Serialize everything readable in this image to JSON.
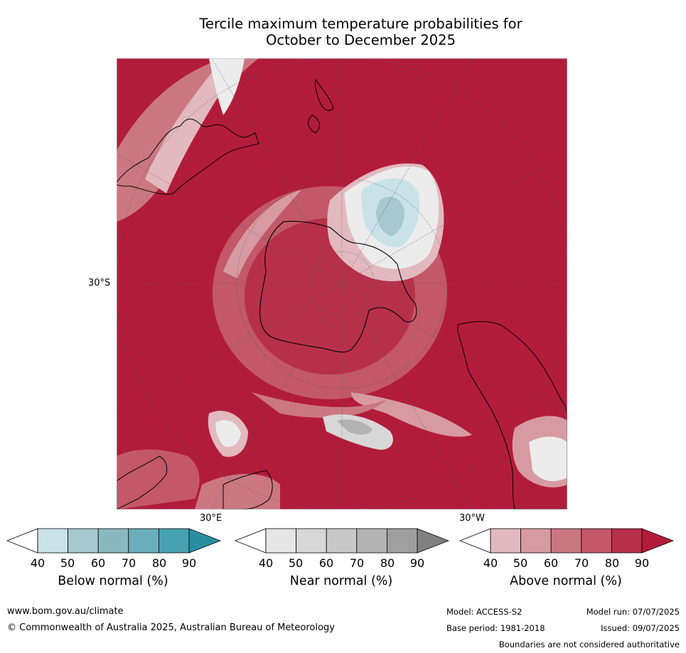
{
  "title_line1": "Tercile maximum temperature probabilities for",
  "title_line2": "October to December 2025",
  "map_labels": {
    "lat": "30°S",
    "lon_east": "30°E",
    "lon_west": "30°W"
  },
  "colorbars": [
    {
      "title": "Below normal (%)",
      "ticks": [
        "40",
        "50",
        "60",
        "70",
        "80",
        "90"
      ],
      "colors": [
        "#ffffff",
        "#c9e2e8",
        "#a6c8ce",
        "#8bb8bf",
        "#6cadbb",
        "#46a1b1",
        "#2a8ea2"
      ]
    },
    {
      "title": "Near normal (%)",
      "ticks": [
        "40",
        "50",
        "60",
        "70",
        "80",
        "90"
      ],
      "colors": [
        "#ffffff",
        "#e6e6e6",
        "#d7d7d7",
        "#c8c8c8",
        "#b3b3b3",
        "#9f9f9f",
        "#808080"
      ]
    },
    {
      "title": "Above normal (%)",
      "ticks": [
        "40",
        "50",
        "60",
        "70",
        "80",
        "90"
      ],
      "colors": [
        "#ffffff",
        "#e2b9bf",
        "#d89aa2",
        "#cb7782",
        "#c25868",
        "#b7304a",
        "#b21c3b"
      ]
    }
  ],
  "footer": {
    "url": "www.bom.gov.au/climate",
    "copyright": "© Commonwealth of Australia 2025, Australian Bureau of Meteorology",
    "model": "Model: ACCESS-S2",
    "base_period": "Base period: 1981-2018",
    "model_run": "Model run: 07/07/2025",
    "issued": "Issued: 09/07/2025",
    "disclaimer": "Boundaries are not considered authoritative"
  }
}
